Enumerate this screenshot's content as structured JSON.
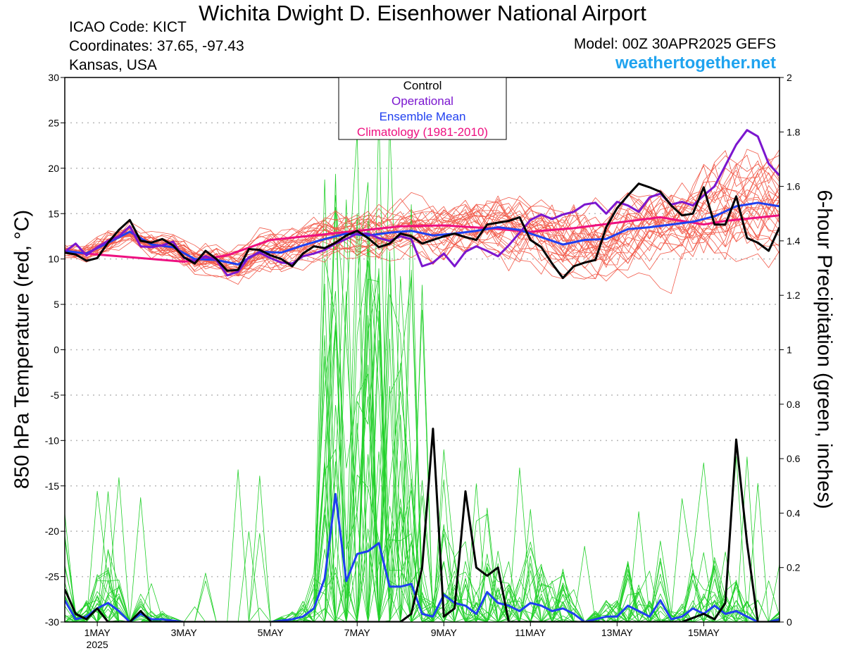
{
  "header": {
    "title": "Wichita Dwight D. Eisenhower National Airport",
    "icao": "ICAO Code: KICT",
    "coords": "Coordinates: 37.65, -97.43",
    "location": "Kansas, USA",
    "model": "Model: 00Z 30APR2025 GEFS",
    "site": "weathertogether.net"
  },
  "chart_data": {
    "type": "line",
    "ylabel_left": "850 hPa Temperature (red, °C)",
    "ylabel_right": "6-hour Precipitation (green, inches)",
    "ylim_left": [
      -30,
      30
    ],
    "ylim_right": [
      0,
      2
    ],
    "xlim_days": [
      -0.75,
      15.75
    ],
    "left_ticks": [
      30,
      25,
      20,
      15,
      10,
      5,
      0,
      -5,
      -10,
      -15,
      -20,
      -25,
      -30
    ],
    "right_ticks": [
      2,
      1.8,
      1.6,
      1.4,
      1.2,
      1,
      0.8,
      0.6,
      0.4,
      0.2,
      0
    ],
    "x_ticks": [
      {
        "day": 0,
        "label": "1MAY",
        "sub": "2025"
      },
      {
        "day": 2,
        "label": "3MAY",
        "sub": ""
      },
      {
        "day": 4,
        "label": "5MAY",
        "sub": ""
      },
      {
        "day": 6,
        "label": "7MAY",
        "sub": ""
      },
      {
        "day": 8,
        "label": "9MAY",
        "sub": ""
      },
      {
        "day": 10,
        "label": "11MAY",
        "sub": ""
      },
      {
        "day": 12,
        "label": "13MAY",
        "sub": ""
      },
      {
        "day": 14,
        "label": "15MAY",
        "sub": ""
      }
    ],
    "legend": [
      "Control",
      "Operational",
      "Ensemble Mean",
      "Climatology (1981-2010)"
    ],
    "colors": {
      "control": "#000000",
      "operational": "#7b16cf",
      "mean": "#1f3ff0",
      "climatology": "#ee1080",
      "members_temp": "#f25a4a",
      "members_precip": "#22d02a",
      "grid": "#b8b8b8"
    },
    "series": [
      {
        "name": "Control",
        "axis": "left",
        "points": [
          [
            -0.75,
            10.7
          ],
          [
            -0.5,
            10.5
          ],
          [
            -0.25,
            9.8
          ],
          [
            0,
            10.1
          ],
          [
            0.25,
            11.8
          ],
          [
            0.5,
            13.2
          ],
          [
            0.75,
            14.3
          ],
          [
            1,
            12
          ],
          [
            1.25,
            11.8
          ],
          [
            1.5,
            12.2
          ],
          [
            1.75,
            11.5
          ],
          [
            2,
            10.2
          ],
          [
            2.25,
            9.5
          ],
          [
            2.5,
            10.9
          ],
          [
            2.75,
            10
          ],
          [
            3,
            8.7
          ],
          [
            3.25,
            8.8
          ],
          [
            3.5,
            11.1
          ],
          [
            3.75,
            11
          ],
          [
            4,
            10.4
          ],
          [
            4.25,
            10
          ],
          [
            4.5,
            9.2
          ],
          [
            4.75,
            10.6
          ],
          [
            5,
            11.4
          ],
          [
            5.25,
            11.2
          ],
          [
            5.5,
            11.8
          ],
          [
            5.75,
            12.6
          ],
          [
            6,
            13.1
          ],
          [
            6.25,
            12.3
          ],
          [
            6.5,
            11.3
          ],
          [
            6.75,
            11.7
          ],
          [
            7,
            12.8
          ],
          [
            7.25,
            12.5
          ],
          [
            7.5,
            11.7
          ],
          [
            7.75,
            12.1
          ],
          [
            8,
            12.5
          ],
          [
            8.25,
            12.8
          ],
          [
            8.5,
            12.4
          ],
          [
            8.75,
            12.1
          ],
          [
            9,
            13.8
          ],
          [
            9.25,
            14
          ],
          [
            9.5,
            14.2
          ],
          [
            9.75,
            14.6
          ],
          [
            10,
            12.1
          ],
          [
            10.25,
            11.3
          ],
          [
            10.5,
            9.5
          ],
          [
            10.75,
            7.9
          ],
          [
            11,
            9.2
          ],
          [
            11.25,
            9.6
          ],
          [
            11.5,
            9.9
          ],
          [
            11.75,
            13.5
          ],
          [
            12,
            15.6
          ],
          [
            12.25,
            17
          ],
          [
            12.5,
            18.3
          ],
          [
            12.75,
            17.9
          ],
          [
            13,
            17.4
          ],
          [
            13.25,
            15.9
          ],
          [
            13.5,
            14.8
          ],
          [
            13.75,
            15
          ],
          [
            14,
            17.9
          ],
          [
            14.25,
            13.8
          ],
          [
            14.5,
            13.8
          ],
          [
            14.75,
            16.9
          ],
          [
            15,
            12.3
          ],
          [
            15.25,
            11.8
          ],
          [
            15.5,
            10.9
          ],
          [
            15.75,
            13.5
          ]
        ]
      },
      {
        "name": "Operational",
        "axis": "left",
        "points": [
          [
            -0.75,
            10.8
          ],
          [
            -0.5,
            11.7
          ],
          [
            -0.25,
            10.4
          ],
          [
            0,
            11.3
          ],
          [
            0.25,
            12
          ],
          [
            0.5,
            12.5
          ],
          [
            0.75,
            13.6
          ],
          [
            1,
            11.4
          ],
          [
            1.25,
            11.3
          ],
          [
            1.5,
            11.5
          ],
          [
            1.75,
            11.9
          ],
          [
            2,
            10.1
          ],
          [
            2.25,
            9.8
          ],
          [
            2.5,
            10.3
          ],
          [
            2.75,
            9.9
          ],
          [
            3,
            8.2
          ],
          [
            3.25,
            8.6
          ],
          [
            3.5,
            10.2
          ],
          [
            3.75,
            10.7
          ],
          [
            4,
            10.1
          ],
          [
            4.25,
            9.6
          ],
          [
            4.5,
            9.5
          ],
          [
            4.75,
            10.3
          ],
          [
            5,
            10.6
          ],
          [
            5.25,
            11
          ],
          [
            5.5,
            11.7
          ],
          [
            5.75,
            12.2
          ],
          [
            6,
            12.8
          ],
          [
            6.25,
            12.8
          ],
          [
            6.5,
            12.3
          ],
          [
            6.75,
            12
          ],
          [
            7,
            12.5
          ],
          [
            7.25,
            12.2
          ],
          [
            7.5,
            9.2
          ],
          [
            7.75,
            9.6
          ],
          [
            8,
            10.6
          ],
          [
            8.25,
            9.2
          ],
          [
            8.5,
            10.8
          ],
          [
            8.75,
            11.4
          ],
          [
            9,
            10.9
          ],
          [
            9.25,
            10.3
          ],
          [
            9.5,
            11.5
          ],
          [
            9.75,
            12.9
          ],
          [
            10,
            14.3
          ],
          [
            10.25,
            14.9
          ],
          [
            10.5,
            14.4
          ],
          [
            10.75,
            14.9
          ],
          [
            11,
            15.2
          ],
          [
            11.25,
            16
          ],
          [
            11.5,
            16.2
          ],
          [
            11.75,
            15
          ],
          [
            12,
            16.3
          ],
          [
            12.25,
            15.9
          ],
          [
            12.5,
            15.2
          ],
          [
            12.75,
            16.8
          ],
          [
            13,
            17.2
          ],
          [
            13.25,
            16
          ],
          [
            13.5,
            16.3
          ],
          [
            13.75,
            15.9
          ],
          [
            14,
            17
          ],
          [
            14.25,
            18
          ],
          [
            14.5,
            20.3
          ],
          [
            14.75,
            22.6
          ],
          [
            15,
            24.2
          ],
          [
            15.25,
            23.5
          ],
          [
            15.5,
            20.5
          ],
          [
            15.75,
            19.2
          ]
        ]
      },
      {
        "name": "Ensemble Mean",
        "axis": "left",
        "points": [
          [
            -0.75,
            10.9
          ],
          [
            -0.25,
            10.6
          ],
          [
            0.25,
            11.8
          ],
          [
            0.75,
            13
          ],
          [
            1.25,
            11.6
          ],
          [
            1.75,
            11.3
          ],
          [
            2.25,
            10
          ],
          [
            2.75,
            9.9
          ],
          [
            3.25,
            9.4
          ],
          [
            3.75,
            10.8
          ],
          [
            4.25,
            10.7
          ],
          [
            4.75,
            11.5
          ],
          [
            5.25,
            12.2
          ],
          [
            5.75,
            12.8
          ],
          [
            6.25,
            12.6
          ],
          [
            6.75,
            12.9
          ],
          [
            7.25,
            13.1
          ],
          [
            7.75,
            12.6
          ],
          [
            8.25,
            12.8
          ],
          [
            8.75,
            13.1
          ],
          [
            9.25,
            13.5
          ],
          [
            9.75,
            13.2
          ],
          [
            10.25,
            12.4
          ],
          [
            10.75,
            11.6
          ],
          [
            11.25,
            12.1
          ],
          [
            11.75,
            12.2
          ],
          [
            12.25,
            13.3
          ],
          [
            12.75,
            13.5
          ],
          [
            13.25,
            13.8
          ],
          [
            13.75,
            14.1
          ],
          [
            14.25,
            14.7
          ],
          [
            14.75,
            15.8
          ],
          [
            15.25,
            16.2
          ],
          [
            15.75,
            15.8
          ]
        ]
      },
      {
        "name": "Climatology (1981-2010)",
        "axis": "left",
        "points": [
          [
            -0.75,
            10.8
          ],
          [
            0,
            10.5
          ],
          [
            1,
            10.1
          ],
          [
            2,
            9.7
          ],
          [
            3,
            10.4
          ],
          [
            4,
            12.1
          ],
          [
            5,
            12.6
          ],
          [
            6,
            13.1
          ],
          [
            7,
            13.6
          ],
          [
            8,
            13.7
          ],
          [
            9,
            13.4
          ],
          [
            10,
            13
          ],
          [
            11,
            13.4
          ],
          [
            12,
            14
          ],
          [
            13,
            14.6
          ],
          [
            14,
            13.8
          ],
          [
            14.5,
            14.2
          ],
          [
            15.75,
            14.8
          ]
        ]
      },
      {
        "name": "Control",
        "axis": "right",
        "points": [
          [
            -0.75,
            0.12
          ],
          [
            -0.5,
            0.03
          ],
          [
            -0.25,
            0.01
          ],
          [
            0,
            0.05
          ],
          [
            0.25,
            0
          ],
          [
            0.5,
            0
          ],
          [
            0.75,
            0
          ],
          [
            1,
            0.04
          ],
          [
            1.25,
            0
          ],
          [
            1.5,
            0
          ],
          [
            2,
            0
          ],
          [
            3,
            0
          ],
          [
            4,
            0
          ],
          [
            5,
            0
          ],
          [
            6,
            0
          ],
          [
            6.5,
            0
          ],
          [
            7,
            0
          ],
          [
            7.25,
            0.03
          ],
          [
            7.5,
            0.2
          ],
          [
            7.75,
            0.71
          ],
          [
            8,
            0.02
          ],
          [
            8.25,
            0.05
          ],
          [
            8.5,
            0.48
          ],
          [
            8.75,
            0.2
          ],
          [
            9,
            0.17
          ],
          [
            9.25,
            0.2
          ],
          [
            9.5,
            0
          ],
          [
            9.75,
            0
          ],
          [
            10,
            0
          ],
          [
            11,
            0
          ],
          [
            12,
            0
          ],
          [
            13,
            0
          ],
          [
            13.5,
            0
          ],
          [
            14,
            0.03
          ],
          [
            14.25,
            0.01
          ],
          [
            14.5,
            0.07
          ],
          [
            14.75,
            0.67
          ],
          [
            15,
            0.29
          ],
          [
            15.25,
            0
          ],
          [
            15.75,
            0
          ]
        ]
      },
      {
        "name": "Ensemble Mean",
        "axis": "right",
        "points": [
          [
            -0.75,
            0.08
          ],
          [
            -0.5,
            0.01
          ],
          [
            -0.25,
            0.02
          ],
          [
            0,
            0.05
          ],
          [
            0.25,
            0.07
          ],
          [
            0.5,
            0.04
          ],
          [
            0.75,
            0
          ],
          [
            1,
            0.03
          ],
          [
            1.25,
            0.01
          ],
          [
            1.5,
            0.01
          ],
          [
            2,
            0
          ],
          [
            3,
            0
          ],
          [
            4,
            0
          ],
          [
            4.5,
            0.01
          ],
          [
            4.75,
            0.02
          ],
          [
            5,
            0.05
          ],
          [
            5.25,
            0.16
          ],
          [
            5.5,
            0.47
          ],
          [
            5.75,
            0.15
          ],
          [
            6,
            0.25
          ],
          [
            6.25,
            0.26
          ],
          [
            6.5,
            0.29
          ],
          [
            6.75,
            0.13
          ],
          [
            7,
            0.13
          ],
          [
            7.25,
            0.14
          ],
          [
            7.5,
            0.03
          ],
          [
            7.75,
            0.02
          ],
          [
            8,
            0.1
          ],
          [
            8.25,
            0.07
          ],
          [
            8.5,
            0.06
          ],
          [
            8.75,
            0.03
          ],
          [
            9,
            0.11
          ],
          [
            9.25,
            0.07
          ],
          [
            9.5,
            0.06
          ],
          [
            9.75,
            0.04
          ],
          [
            10,
            0.07
          ],
          [
            10.25,
            0.06
          ],
          [
            10.5,
            0.04
          ],
          [
            10.75,
            0.05
          ],
          [
            11,
            0.03
          ],
          [
            11.25,
            0
          ],
          [
            11.5,
            0.01
          ],
          [
            11.75,
            0.02
          ],
          [
            12,
            0.02
          ],
          [
            12.25,
            0.06
          ],
          [
            12.5,
            0.04
          ],
          [
            12.75,
            0.02
          ],
          [
            13,
            0.08
          ],
          [
            13.25,
            0.01
          ],
          [
            13.5,
            0.02
          ],
          [
            13.75,
            0.05
          ],
          [
            14,
            0.03
          ],
          [
            14.25,
            0.06
          ],
          [
            14.5,
            0.03
          ],
          [
            14.75,
            0.04
          ],
          [
            15,
            0.02
          ],
          [
            15.25,
            0
          ],
          [
            15.5,
            0
          ],
          [
            15.75,
            0.01
          ]
        ]
      }
    ]
  }
}
